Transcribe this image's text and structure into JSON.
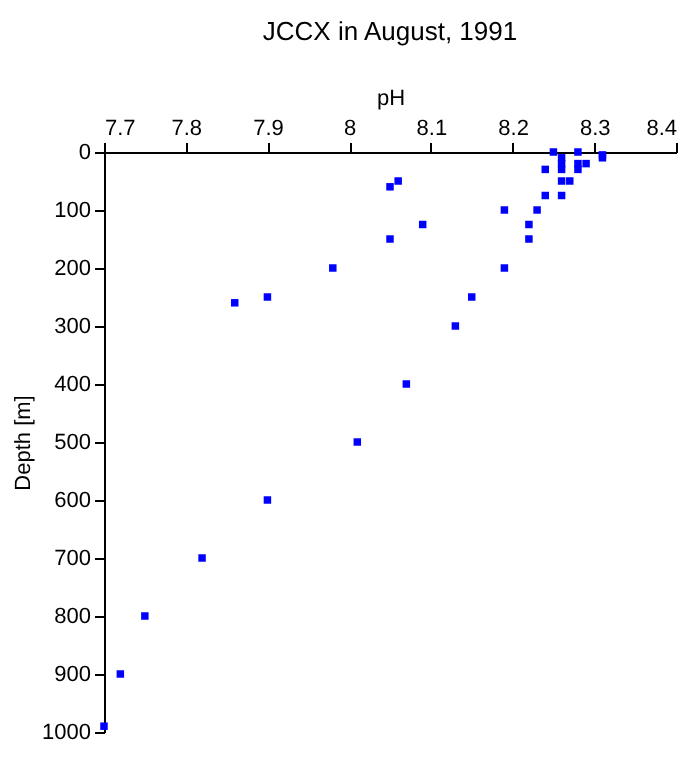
{
  "chart_data": {
    "type": "scatter",
    "title": "JCCX in August, 1991",
    "xlabel": "pH",
    "ylabel": "Depth [m]",
    "x": [
      8.25,
      8.28,
      8.31,
      8.31,
      8.26,
      8.26,
      8.26,
      8.24,
      8.28,
      8.29,
      8.28,
      8.26,
      8.27,
      8.06,
      8.05,
      8.26,
      8.24,
      8.23,
      8.19,
      8.09,
      8.22,
      8.22,
      8.05,
      7.98,
      8.19,
      7.86,
      7.9,
      8.15,
      8.13,
      8.07,
      8.01,
      7.9,
      7.82,
      7.75,
      7.72,
      7.7
    ],
    "series": [
      {
        "color": "#0000ff",
        "values": [
          0,
          0,
          5,
          10,
          10,
          20,
          30,
          30,
          20,
          20,
          30,
          50,
          50,
          50,
          60,
          75,
          75,
          100,
          100,
          125,
          125,
          150,
          150,
          200,
          200,
          260,
          250,
          250,
          300,
          400,
          500,
          600,
          700,
          800,
          900,
          990
        ]
      }
    ],
    "xlim": [
      7.7,
      8.4
    ],
    "xticks": [
      7.7,
      7.8,
      7.9,
      8,
      8.1,
      8.2,
      8.3,
      8.4
    ],
    "ylim": [
      1000,
      0
    ],
    "yticks": [
      0,
      100,
      200,
      300,
      400,
      500,
      600,
      700,
      800,
      900,
      1000
    ],
    "marker": "square",
    "grid": false
  }
}
